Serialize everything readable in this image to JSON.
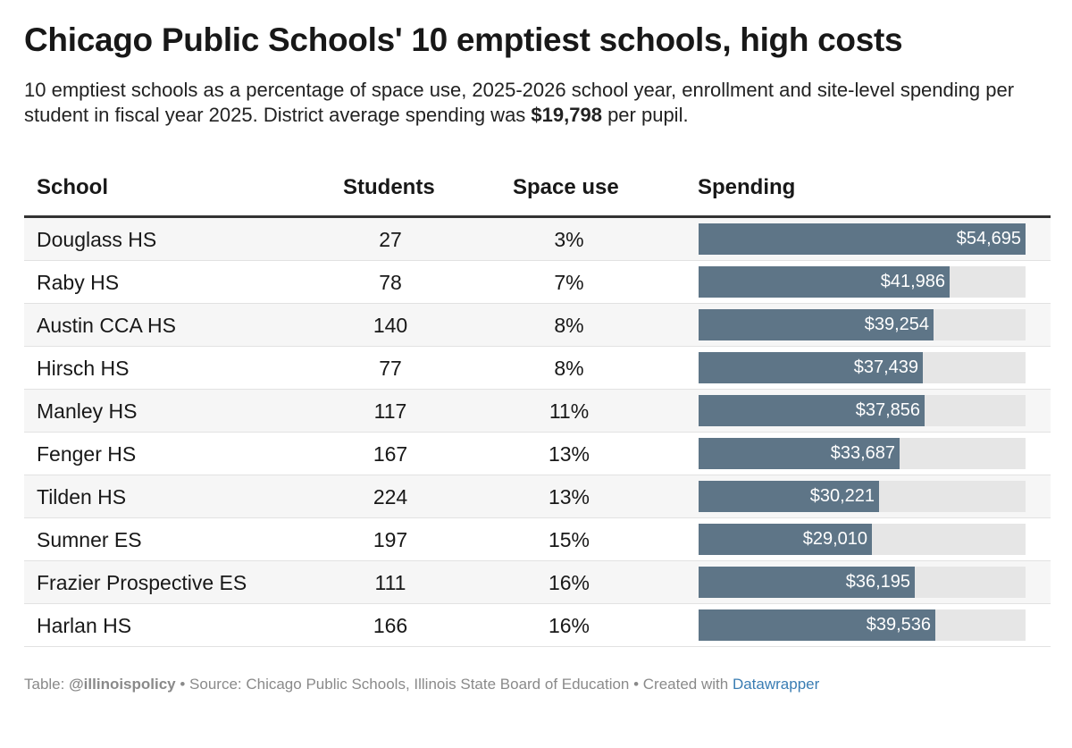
{
  "title": "Chicago Public Schools' 10 emptiest schools, high costs",
  "description": {
    "text_before": "10 emptiest schools as a percentage of space use, 2025-2026 school year, enrollment and site-level spending per student in fiscal year 2025. District average spending was ",
    "highlight": "$19,798",
    "text_after": " per pupil."
  },
  "colors": {
    "bar": "#5e7587",
    "track": "#e6e6e6",
    "link": "#3a7db3"
  },
  "chart_data": {
    "type": "table",
    "columns": [
      "School",
      "Students",
      "Space use",
      "Spending"
    ],
    "bar_max": 54695,
    "rows": [
      {
        "school": "Douglass HS",
        "students": "27",
        "space_use": "3%",
        "spending": 54695,
        "spending_label": "$54,695"
      },
      {
        "school": "Raby HS",
        "students": "78",
        "space_use": "7%",
        "spending": 41986,
        "spending_label": "$41,986"
      },
      {
        "school": "Austin CCA HS",
        "students": "140",
        "space_use": "8%",
        "spending": 39254,
        "spending_label": "$39,254"
      },
      {
        "school": "Hirsch HS",
        "students": "77",
        "space_use": "8%",
        "spending": 37439,
        "spending_label": "$37,439"
      },
      {
        "school": "Manley HS",
        "students": "117",
        "space_use": "11%",
        "spending": 37856,
        "spending_label": "$37,856"
      },
      {
        "school": "Fenger HS",
        "students": "167",
        "space_use": "13%",
        "spending": 33687,
        "spending_label": "$33,687"
      },
      {
        "school": "Tilden HS",
        "students": "224",
        "space_use": "13%",
        "spending": 30221,
        "spending_label": "$30,221"
      },
      {
        "school": "Sumner ES",
        "students": "197",
        "space_use": "15%",
        "spending": 29010,
        "spending_label": "$29,010"
      },
      {
        "school": "Frazier Prospective ES",
        "students": "111",
        "space_use": "16%",
        "spending": 36195,
        "spending_label": "$36,195"
      },
      {
        "school": "Harlan HS",
        "students": "166",
        "space_use": "16%",
        "spending": 39536,
        "spending_label": "$39,536"
      }
    ]
  },
  "footer": {
    "table_prefix": "Table: ",
    "handle": "@illinoispolicy",
    "source": " • Source: Chicago Public Schools, Illinois State Board of Education • Created with ",
    "link": "Datawrapper"
  }
}
